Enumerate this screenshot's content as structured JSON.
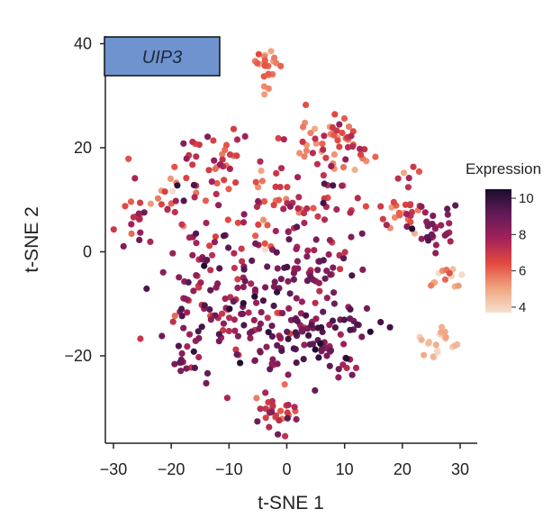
{
  "chart_data": {
    "type": "scatter",
    "title": "",
    "panel_label": "UIP3",
    "panel_label_color": "#6f93cf",
    "xlabel": "t-SNE 1",
    "ylabel": "t-SNE 2",
    "xlim": [
      -32,
      33
    ],
    "ylim": [
      -37,
      42
    ],
    "xticks": [
      -30,
      -20,
      -10,
      0,
      10,
      20,
      30
    ],
    "yticks": [
      -20,
      0,
      20,
      40
    ],
    "xtick_labels": [
      "−30",
      "−20",
      "−10",
      "0",
      "10",
      "20",
      "30"
    ],
    "ytick_labels": [
      "−20",
      "0",
      "20",
      "40"
    ],
    "grid": false,
    "colorbar": {
      "title": "Expression",
      "min": 3.7,
      "max": 10.5,
      "ticks": [
        4,
        6,
        8,
        10
      ],
      "tick_labels": [
        "4",
        "6",
        "8",
        "10"
      ],
      "colormap": [
        "#f5e0cf",
        "#f0a47f",
        "#e3493f",
        "#a3215a",
        "#611b57",
        "#1b0c2d"
      ]
    },
    "clusters": [
      {
        "cx": -3.5,
        "cy": 35.5,
        "sx": 1.2,
        "sy": 2.0,
        "n": 22,
        "mean": 5.8,
        "sd": 0.5
      },
      {
        "cx": 5.5,
        "cy": 22,
        "sx": 3.5,
        "sy": 2.5,
        "n": 30,
        "mean": 6.2,
        "sd": 0.8
      },
      {
        "cx": 10.5,
        "cy": 20,
        "sx": 2.5,
        "sy": 3.0,
        "n": 22,
        "mean": 6.3,
        "sd": 0.8
      },
      {
        "cx": -12.5,
        "cy": 17,
        "sx": 3.5,
        "sy": 3.5,
        "n": 38,
        "mean": 7.0,
        "sd": 1.0
      },
      {
        "cx": -20,
        "cy": 10,
        "sx": 3.5,
        "sy": 3.5,
        "n": 28,
        "mean": 6.8,
        "sd": 1.2
      },
      {
        "cx": -1,
        "cy": 9,
        "sx": 4.5,
        "sy": 4.0,
        "n": 40,
        "mean": 6.6,
        "sd": 1.0
      },
      {
        "cx": 8,
        "cy": 8,
        "sx": 3.5,
        "sy": 5.0,
        "n": 30,
        "mean": 7.4,
        "sd": 1.0
      },
      {
        "cx": 19.5,
        "cy": 7.5,
        "sx": 1.8,
        "sy": 2.0,
        "n": 22,
        "mean": 6.4,
        "sd": 0.9
      },
      {
        "cx": 25.5,
        "cy": 5,
        "sx": 2.3,
        "sy": 2.5,
        "n": 30,
        "mean": 8.2,
        "sd": 1.0
      },
      {
        "cx": -27,
        "cy": 5,
        "sx": 2.0,
        "sy": 2.0,
        "n": 12,
        "mean": 7.4,
        "sd": 1.0
      },
      {
        "cx": -14,
        "cy": -4,
        "sx": 5.0,
        "sy": 5.0,
        "n": 70,
        "mean": 8.0,
        "sd": 1.0
      },
      {
        "cx": -8,
        "cy": -12,
        "sx": 4.0,
        "sy": 4.0,
        "n": 35,
        "mean": 8.3,
        "sd": 0.8
      },
      {
        "cx": 3,
        "cy": -3,
        "sx": 5.0,
        "sy": 4.0,
        "n": 55,
        "mean": 8.2,
        "sd": 0.9
      },
      {
        "cx": 5,
        "cy": -15,
        "sx": 5.5,
        "sy": 4.0,
        "n": 80,
        "mean": 8.8,
        "sd": 0.8
      },
      {
        "cx": -17,
        "cy": -15,
        "sx": 2.5,
        "sy": 2.5,
        "n": 14,
        "mean": 8.0,
        "sd": 1.0
      },
      {
        "cx": -2,
        "cy": -17,
        "sx": 5.0,
        "sy": 3.0,
        "n": 30,
        "mean": 8.4,
        "sd": 0.9
      },
      {
        "cx": -18,
        "cy": -22,
        "sx": 2.0,
        "sy": 1.5,
        "n": 12,
        "mean": 8.4,
        "sd": 0.7
      },
      {
        "cx": 10,
        "cy": -22,
        "sx": 2.0,
        "sy": 1.5,
        "n": 6,
        "mean": 8.0,
        "sd": 0.8
      },
      {
        "cx": -2,
        "cy": -30.5,
        "sx": 2.0,
        "sy": 2.2,
        "n": 30,
        "mean": 7.0,
        "sd": 1.2
      },
      {
        "cx": 27,
        "cy": -5,
        "sx": 1.6,
        "sy": 1.2,
        "n": 14,
        "mean": 5.0,
        "sd": 0.6
      },
      {
        "cx": 26.5,
        "cy": -17,
        "sx": 1.8,
        "sy": 1.5,
        "n": 20,
        "mean": 4.5,
        "sd": 0.4
      },
      {
        "cx": 20.5,
        "cy": 15,
        "sx": 1.5,
        "sy": 1.5,
        "n": 6,
        "mean": 6.8,
        "sd": 1.0
      }
    ]
  }
}
